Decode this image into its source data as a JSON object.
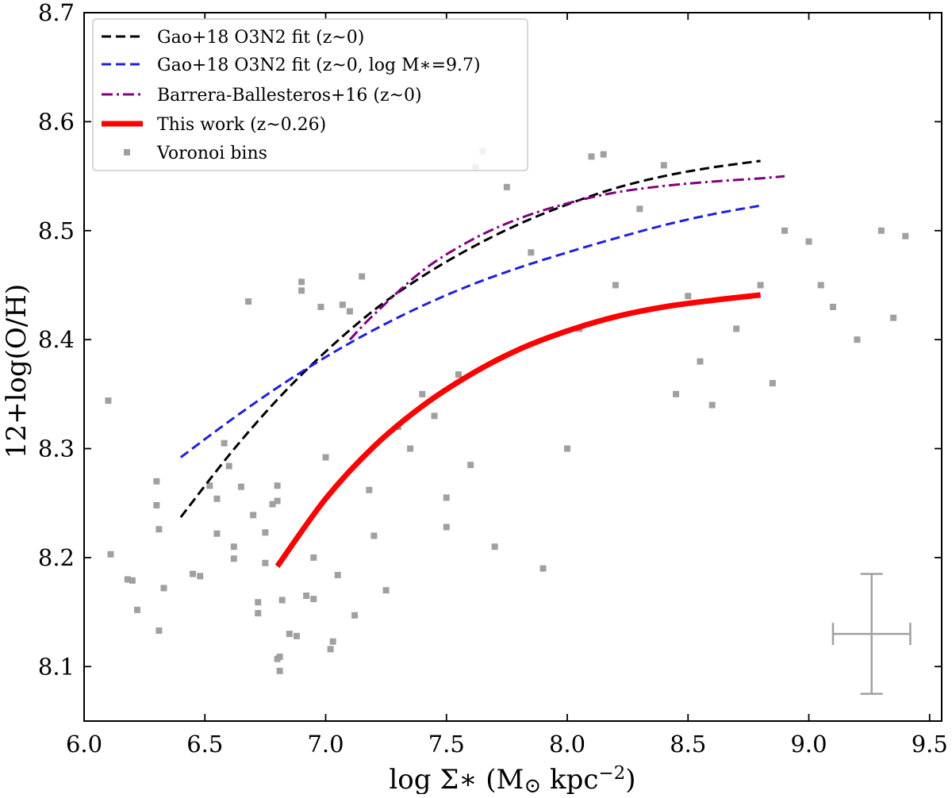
{
  "chart_data": {
    "type": "scatter",
    "xlabel": "log Σ∗ (M⊙ kpc⁻²)",
    "xlabel_parts": {
      "main": "log Σ∗ (M",
      "sun": "⊙",
      "unit": " kpc",
      "exp": "−2",
      "close": ")"
    },
    "ylabel": "12+log(O/H)",
    "xlim": [
      6.0,
      9.55
    ],
    "ylim": [
      8.05,
      8.7
    ],
    "xticks": [
      6.0,
      6.5,
      7.0,
      7.5,
      8.0,
      8.5,
      9.0,
      9.5
    ],
    "xtick_labels": [
      "6.0",
      "6.5",
      "7.0",
      "7.5",
      "8.0",
      "8.5",
      "9.0",
      "9.5"
    ],
    "yticks": [
      8.1,
      8.2,
      8.3,
      8.4,
      8.5,
      8.6,
      8.7
    ],
    "ytick_labels": [
      "8.1",
      "8.2",
      "8.3",
      "8.4",
      "8.5",
      "8.6",
      "8.7"
    ],
    "grid": false,
    "legend_position": "top-left",
    "legend": [
      {
        "label": "Gao+18 O3N2 fit (z~0)",
        "series": "gao_z0"
      },
      {
        "label": "Gao+18 O3N2 fit (z~0, log M∗=9.7)",
        "series": "gao_m97"
      },
      {
        "label": "Barrera-Ballesteros+16 (z~0)",
        "series": "bb16"
      },
      {
        "label": "This work (z~0.26)",
        "series": "this_work"
      },
      {
        "label": "Voronoi bins",
        "series": "voronoi"
      }
    ],
    "series": [
      {
        "id": "gao_z0",
        "name": "Gao+18 O3N2 fit (z~0)",
        "style": "dashed",
        "color": "#000000",
        "points": [
          [
            6.4,
            8.237
          ],
          [
            6.6,
            8.294
          ],
          [
            6.8,
            8.345
          ],
          [
            7.0,
            8.389
          ],
          [
            7.2,
            8.427
          ],
          [
            7.4,
            8.458
          ],
          [
            7.6,
            8.484
          ],
          [
            7.8,
            8.506
          ],
          [
            8.0,
            8.524
          ],
          [
            8.2,
            8.539
          ],
          [
            8.4,
            8.55
          ],
          [
            8.6,
            8.558
          ],
          [
            8.8,
            8.564
          ]
        ]
      },
      {
        "id": "gao_m97",
        "name": "Gao+18 O3N2 fit (z~0, log M∗=9.7)",
        "style": "dashed",
        "color": "#1f1fe0",
        "points": [
          [
            6.4,
            8.292
          ],
          [
            6.6,
            8.325
          ],
          [
            6.8,
            8.356
          ],
          [
            7.0,
            8.384
          ],
          [
            7.2,
            8.409
          ],
          [
            7.4,
            8.431
          ],
          [
            7.6,
            8.45
          ],
          [
            7.8,
            8.466
          ],
          [
            8.0,
            8.48
          ],
          [
            8.2,
            8.493
          ],
          [
            8.4,
            8.505
          ],
          [
            8.6,
            8.515
          ],
          [
            8.8,
            8.523
          ]
        ]
      },
      {
        "id": "bb16",
        "name": "Barrera-Ballesteros+16 (z~0)",
        "style": "dashdot",
        "color": "#800080",
        "points": [
          [
            7.1,
            8.4
          ],
          [
            7.2,
            8.423
          ],
          [
            7.4,
            8.463
          ],
          [
            7.6,
            8.491
          ],
          [
            7.8,
            8.511
          ],
          [
            8.0,
            8.525
          ],
          [
            8.2,
            8.535
          ],
          [
            8.4,
            8.541
          ],
          [
            8.6,
            8.545
          ],
          [
            8.8,
            8.548
          ],
          [
            8.9,
            8.55
          ]
        ]
      },
      {
        "id": "this_work",
        "name": "This work (z~0.26)",
        "style": "solid",
        "color": "#ff0000",
        "points": [
          [
            6.8,
            8.192
          ],
          [
            7.0,
            8.254
          ],
          [
            7.2,
            8.302
          ],
          [
            7.4,
            8.339
          ],
          [
            7.6,
            8.368
          ],
          [
            7.8,
            8.391
          ],
          [
            8.0,
            8.408
          ],
          [
            8.2,
            8.421
          ],
          [
            8.4,
            8.43
          ],
          [
            8.6,
            8.436
          ],
          [
            8.8,
            8.441
          ]
        ]
      }
    ],
    "scatter": {
      "id": "voronoi",
      "name": "Voronoi bins",
      "color": "#a0a0a0",
      "points": [
        [
          6.1,
          8.344
        ],
        [
          6.11,
          8.203
        ],
        [
          6.18,
          8.18
        ],
        [
          6.2,
          8.179
        ],
        [
          6.22,
          8.152
        ],
        [
          6.3,
          8.27
        ],
        [
          6.3,
          8.248
        ],
        [
          6.31,
          8.226
        ],
        [
          6.31,
          8.133
        ],
        [
          6.33,
          8.172
        ],
        [
          6.45,
          8.185
        ],
        [
          6.48,
          8.183
        ],
        [
          6.52,
          8.266
        ],
        [
          6.55,
          8.254
        ],
        [
          6.55,
          8.222
        ],
        [
          6.58,
          8.305
        ],
        [
          6.6,
          8.284
        ],
        [
          6.62,
          8.21
        ],
        [
          6.62,
          8.199
        ],
        [
          6.65,
          8.265
        ],
        [
          6.68,
          8.435
        ],
        [
          6.7,
          8.239
        ],
        [
          6.72,
          8.159
        ],
        [
          6.72,
          8.149
        ],
        [
          6.75,
          8.195
        ],
        [
          6.75,
          8.223
        ],
        [
          6.78,
          8.249
        ],
        [
          6.8,
          8.252
        ],
        [
          6.8,
          8.266
        ],
        [
          6.82,
          8.161
        ],
        [
          6.8,
          8.107
        ],
        [
          6.81,
          8.109
        ],
        [
          6.81,
          8.096
        ],
        [
          6.85,
          8.13
        ],
        [
          6.88,
          8.128
        ],
        [
          6.9,
          8.453
        ],
        [
          6.9,
          8.445
        ],
        [
          6.92,
          8.165
        ],
        [
          6.95,
          8.162
        ],
        [
          6.95,
          8.2
        ],
        [
          6.98,
          8.43
        ],
        [
          7.0,
          8.292
        ],
        [
          7.02,
          8.116
        ],
        [
          7.03,
          8.123
        ],
        [
          7.05,
          8.184
        ],
        [
          7.07,
          8.432
        ],
        [
          7.1,
          8.426
        ],
        [
          7.12,
          8.147
        ],
        [
          7.15,
          8.458
        ],
        [
          7.18,
          8.262
        ],
        [
          7.2,
          8.22
        ],
        [
          7.25,
          8.17
        ],
        [
          7.3,
          8.32
        ],
        [
          7.35,
          8.3
        ],
        [
          7.4,
          8.35
        ],
        [
          7.45,
          8.33
        ],
        [
          7.5,
          8.255
        ],
        [
          7.5,
          8.228
        ],
        [
          7.55,
          8.368
        ],
        [
          7.6,
          8.285
        ],
        [
          7.62,
          8.558
        ],
        [
          7.65,
          8.573
        ],
        [
          7.7,
          8.21
        ],
        [
          7.75,
          8.54
        ],
        [
          7.85,
          8.48
        ],
        [
          7.9,
          8.19
        ],
        [
          8.0,
          8.3
        ],
        [
          8.05,
          8.41
        ],
        [
          8.1,
          8.568
        ],
        [
          8.15,
          8.57
        ],
        [
          8.2,
          8.45
        ],
        [
          8.3,
          8.52
        ],
        [
          8.4,
          8.56
        ],
        [
          8.45,
          8.35
        ],
        [
          8.5,
          8.44
        ],
        [
          8.55,
          8.38
        ],
        [
          8.6,
          8.34
        ],
        [
          8.7,
          8.41
        ],
        [
          8.8,
          8.45
        ],
        [
          8.85,
          8.36
        ],
        [
          8.9,
          8.5
        ],
        [
          9.0,
          8.49
        ],
        [
          9.05,
          8.45
        ],
        [
          9.1,
          8.43
        ],
        [
          9.2,
          8.4
        ],
        [
          9.3,
          8.5
        ],
        [
          9.35,
          8.42
        ],
        [
          9.4,
          8.495
        ]
      ]
    },
    "error_bar": {
      "x": 9.26,
      "y": 8.13,
      "xerr": 0.16,
      "yerr": 0.055,
      "color": "#a0a0a0"
    }
  }
}
